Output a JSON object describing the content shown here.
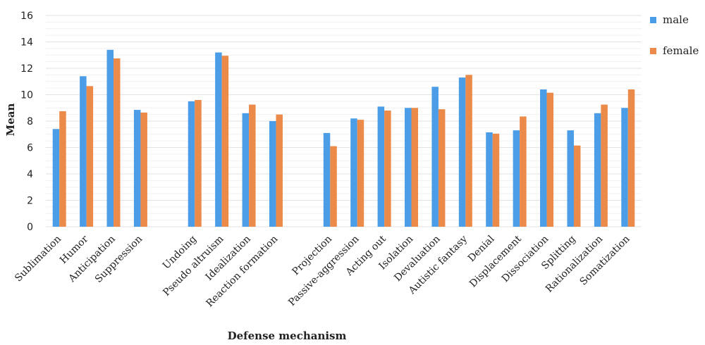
{
  "chart_data": {
    "type": "bar",
    "xlabel": "Defense mechanism",
    "ylabel": "Mean",
    "ylim": [
      0,
      16
    ],
    "yticks": [
      "0",
      "2",
      "4",
      "6",
      "8",
      "10",
      "12",
      "14",
      "16"
    ],
    "grid": "horizontal",
    "legend_placement": "top-right",
    "categories": [
      "Sublimation",
      "Humor",
      "Anticipation",
      "Suppression",
      "",
      "Undoing",
      "Pseudo altruism",
      "Idealization",
      "Reaction formation",
      "",
      "Projection",
      "Passive-aggression",
      "Acting out",
      "Isolation",
      "Devaluation",
      "Autistic fantasy",
      "Denial",
      "Displacement",
      "Dissociation",
      "Splitting",
      "Rationalization",
      "Somatization"
    ],
    "series": [
      {
        "name": "male",
        "color": "#4a9de6",
        "values": [
          7.4,
          11.4,
          13.4,
          8.85,
          null,
          9.5,
          13.2,
          8.6,
          8.0,
          null,
          7.1,
          8.2,
          9.1,
          9.0,
          10.6,
          11.3,
          7.15,
          7.3,
          10.4,
          7.3,
          8.6,
          9.0
        ]
      },
      {
        "name": "female",
        "color": "#ec8a4a",
        "values": [
          8.75,
          10.65,
          12.75,
          8.65,
          null,
          9.6,
          12.95,
          9.25,
          8.5,
          null,
          6.1,
          8.1,
          8.8,
          9.0,
          8.9,
          11.5,
          7.05,
          8.35,
          10.15,
          6.15,
          9.25,
          10.4
        ]
      }
    ]
  },
  "colors": {
    "grid": "#e6e6e6",
    "axis_text": "#222222"
  }
}
